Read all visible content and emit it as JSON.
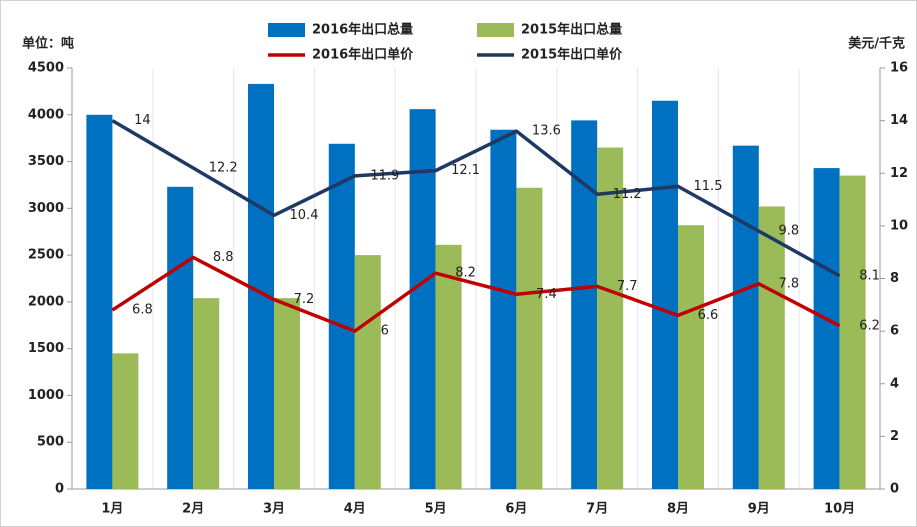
{
  "chart_data": {
    "type": "bar",
    "ylabel": "单位：吨",
    "y2label": "美元/千克",
    "categories": [
      "1月",
      "2月",
      "3月",
      "4月",
      "5月",
      "6月",
      "7月",
      "8月",
      "9月",
      "10月"
    ],
    "series": [
      {
        "name": "2016年出口总量",
        "color": "#0070c0",
        "type": "bar",
        "values": [
          4000,
          3230,
          4330,
          3690,
          4060,
          3840,
          3940,
          4150,
          3670,
          3430
        ]
      },
      {
        "name": "2015年出口总量",
        "color": "#9bbb59",
        "type": "bar",
        "values": [
          1450,
          2040,
          2040,
          2500,
          2610,
          3220,
          3650,
          2820,
          3020,
          3350
        ]
      },
      {
        "name": "2016年出口单价",
        "color": "#c00000",
        "type": "line",
        "axis": "y2",
        "values": [
          6.8,
          8.8,
          7.2,
          6,
          8.2,
          7.4,
          7.7,
          6.6,
          7.8,
          6.2
        ]
      },
      {
        "name": "2015年出口单价",
        "color": "#1f3864",
        "type": "line",
        "axis": "y2",
        "values": [
          14,
          12.2,
          10.4,
          11.9,
          12.1,
          13.6,
          11.2,
          11.5,
          9.8,
          8.1
        ]
      }
    ],
    "ylim": [
      0,
      4500
    ],
    "yticks": [
      0,
      500,
      1000,
      1500,
      2000,
      2500,
      3000,
      3500,
      4000,
      4500
    ],
    "y2lim": [
      0,
      16
    ],
    "y2ticks": [
      0,
      2,
      4,
      6,
      8,
      10,
      12,
      14,
      16
    ]
  }
}
